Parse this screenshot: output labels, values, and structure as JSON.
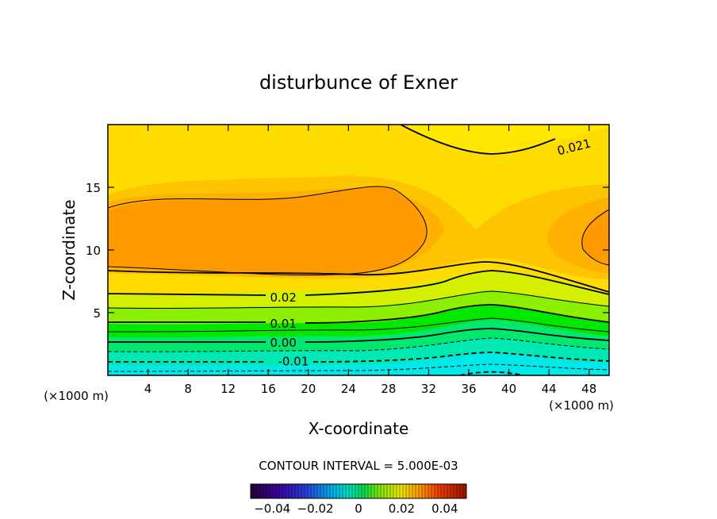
{
  "chart_data": {
    "type": "heatmap",
    "title": "disturbunce of Exner",
    "xlabel": "X-coordinate",
    "ylabel": "Z-coordinate",
    "x_unit_left": "(×1000 m)",
    "x_unit_right": "(×1000 m)",
    "xlim": [
      0,
      50
    ],
    "ylim": [
      0,
      20
    ],
    "x_ticks": [
      4,
      8,
      12,
      16,
      20,
      24,
      28,
      32,
      36,
      40,
      44,
      48
    ],
    "y_ticks": [
      5,
      10,
      15
    ],
    "contour_interval_text": "CONTOUR INTERVAL = 5.000E-03",
    "contour_labels": [
      {
        "text": "0.021",
        "x": 46.5,
        "z": 18.2
      },
      {
        "text": "0.02",
        "x": 17.5,
        "z": 6.2
      },
      {
        "text": "0.01",
        "x": 17.5,
        "z": 4.1
      },
      {
        "text": "0.00",
        "x": 17.5,
        "z": 2.6
      },
      {
        "text": "-0.01",
        "x": 18.5,
        "z": 1.1
      }
    ],
    "colorbar": {
      "range": [
        -0.05,
        0.05
      ],
      "tick_values": [
        -0.04,
        -0.02,
        0,
        0.02,
        0.04
      ],
      "tick_labels": [
        "−0.04",
        "−0.02",
        "0",
        "0.02",
        "0.04"
      ]
    }
  },
  "colors": {
    "orange": "#ff9a00",
    "light_orange": "#ffb000",
    "yellow_orange": "#ffc400",
    "yellow": "#ffdc00",
    "yellow_green": "#d4f000",
    "light_green": "#8cf000",
    "green": "#00e800",
    "green_cyan": "#00e870",
    "cyan_green": "#00e8b4",
    "cyan": "#00e8e8"
  }
}
